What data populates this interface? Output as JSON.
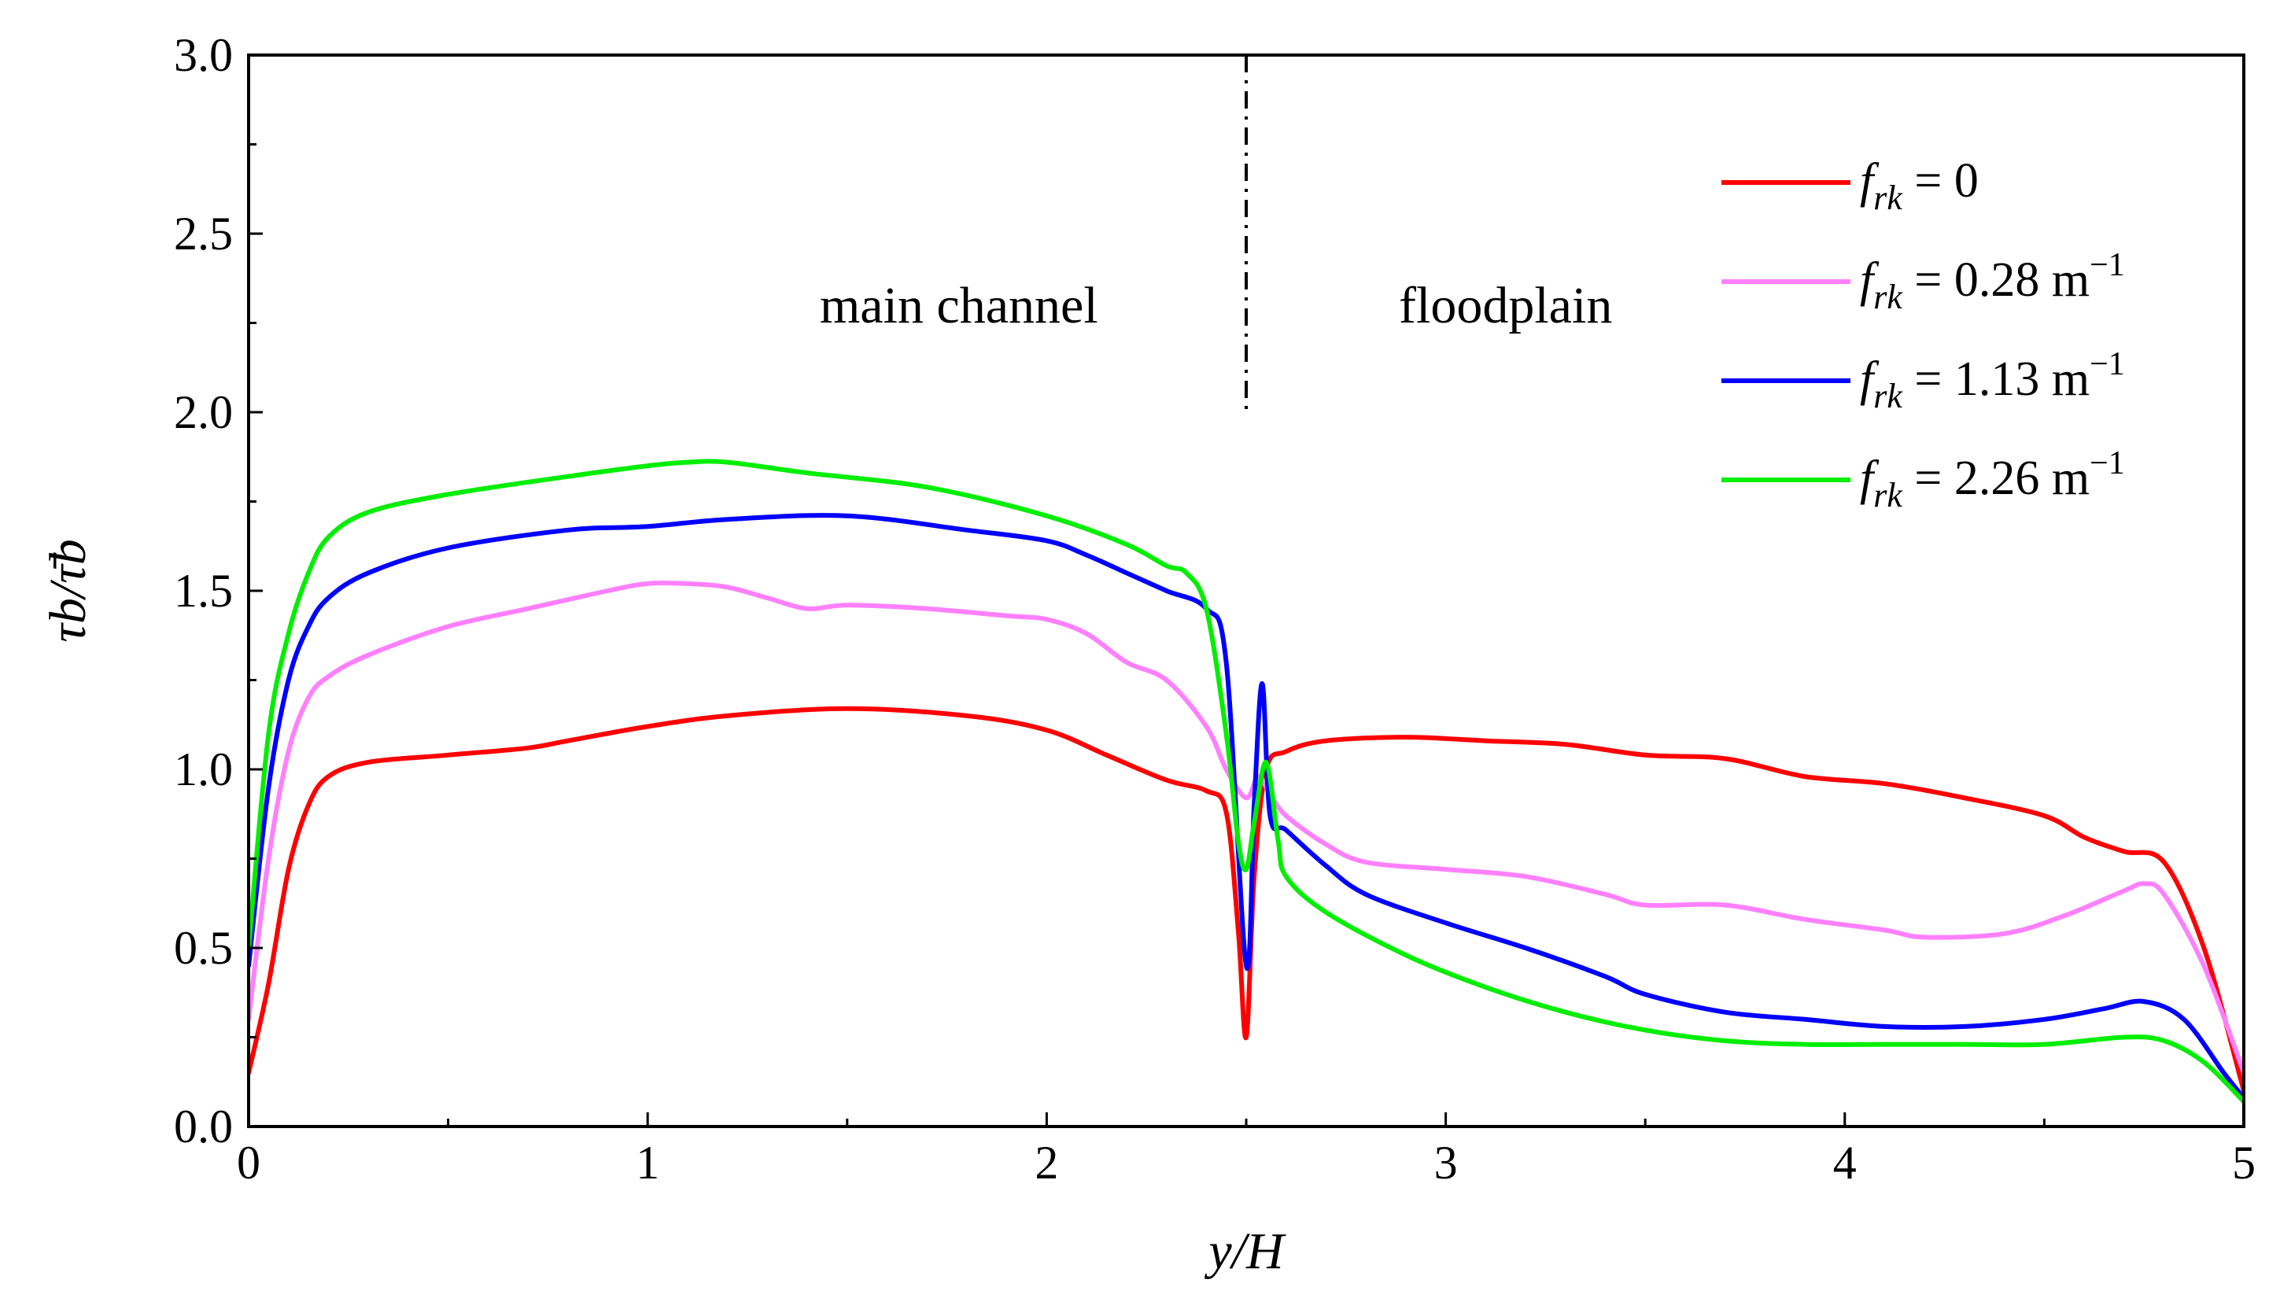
{
  "chart_data": {
    "type": "line",
    "title": "",
    "xlabel": "y/H",
    "ylabel": "τb/τ̄b",
    "xlim": [
      0,
      5
    ],
    "ylim": [
      0,
      3.0
    ],
    "xticks": [
      0,
      1,
      2,
      3,
      4,
      5
    ],
    "xtick_labels": [
      "0",
      "1",
      "2",
      "3",
      "4",
      "5"
    ],
    "yticks": [
      0,
      0.5,
      1.0,
      1.5,
      2.0,
      2.5,
      3.0
    ],
    "ytick_labels": [
      "0.0",
      "0.5",
      "1.0",
      "1.5",
      "2.0",
      "2.5",
      "3.0"
    ],
    "legend_position": "top-right",
    "annotations": [
      {
        "text": "main channel",
        "x": 1.78,
        "y": 2.3
      },
      {
        "text": "floodplain",
        "x": 3.15,
        "y": 2.3
      }
    ],
    "divider": {
      "x": 2.5,
      "y_range": [
        2.0,
        3.0
      ],
      "style": "dash-dot"
    },
    "series": [
      {
        "name": "f_rk = 0",
        "label_lhs": "f",
        "label_sub": "rk",
        "label_rhs": " = 0",
        "label_sup": "",
        "color": "#ff0000",
        "x": [
          0,
          0.05,
          0.1,
          0.15,
          0.2,
          0.3,
          0.5,
          0.7,
          0.8,
          1.0,
          1.2,
          1.5,
          1.8,
          2.0,
          2.15,
          2.3,
          2.4,
          2.45,
          2.48,
          2.5,
          2.52,
          2.55,
          2.6,
          2.7,
          2.9,
          3.1,
          3.3,
          3.5,
          3.7,
          3.9,
          4.1,
          4.3,
          4.5,
          4.6,
          4.7,
          4.8,
          4.9,
          5.0
        ],
        "y": [
          0.15,
          0.4,
          0.72,
          0.9,
          0.98,
          1.02,
          1.04,
          1.06,
          1.08,
          1.12,
          1.15,
          1.17,
          1.15,
          1.11,
          1.04,
          0.97,
          0.94,
          0.88,
          0.55,
          0.25,
          0.7,
          1.0,
          1.05,
          1.08,
          1.09,
          1.08,
          1.07,
          1.04,
          1.03,
          0.98,
          0.96,
          0.92,
          0.87,
          0.81,
          0.77,
          0.74,
          0.5,
          0.1
        ]
      },
      {
        "name": "f_rk = 0.28 m^-1",
        "label_lhs": "f",
        "label_sub": "rk",
        "label_rhs": " = 0.28 m",
        "label_sup": "−1",
        "color": "#ff80ff",
        "x": [
          0,
          0.05,
          0.1,
          0.15,
          0.2,
          0.3,
          0.5,
          0.7,
          0.9,
          1.0,
          1.1,
          1.2,
          1.3,
          1.4,
          1.5,
          1.7,
          1.9,
          2.0,
          2.1,
          2.2,
          2.3,
          2.4,
          2.45,
          2.5,
          2.53,
          2.56,
          2.6,
          2.7,
          2.8,
          3.0,
          3.2,
          3.4,
          3.5,
          3.7,
          3.9,
          4.1,
          4.2,
          4.4,
          4.55,
          4.7,
          4.75,
          4.8,
          4.9,
          5.0
        ],
        "y": [
          0.3,
          0.75,
          1.05,
          1.2,
          1.26,
          1.32,
          1.4,
          1.45,
          1.5,
          1.52,
          1.52,
          1.51,
          1.48,
          1.45,
          1.46,
          1.45,
          1.43,
          1.42,
          1.38,
          1.3,
          1.25,
          1.12,
          1.0,
          0.92,
          0.98,
          0.93,
          0.87,
          0.79,
          0.74,
          0.72,
          0.7,
          0.65,
          0.62,
          0.62,
          0.58,
          0.55,
          0.53,
          0.54,
          0.59,
          0.66,
          0.68,
          0.65,
          0.45,
          0.15
        ]
      },
      {
        "name": "f_rk = 1.13 m^-1",
        "label_lhs": "f",
        "label_sub": "rk",
        "label_rhs": " = 1.13 m",
        "label_sup": "−1",
        "color": "#0000ff",
        "x": [
          0,
          0.05,
          0.1,
          0.15,
          0.2,
          0.3,
          0.5,
          0.8,
          1.0,
          1.2,
          1.5,
          1.8,
          2.0,
          2.1,
          2.2,
          2.3,
          2.4,
          2.45,
          2.5,
          2.52,
          2.54,
          2.56,
          2.6,
          2.7,
          2.8,
          3.0,
          3.2,
          3.4,
          3.5,
          3.7,
          3.9,
          4.1,
          4.3,
          4.5,
          4.65,
          4.75,
          4.85,
          4.95,
          5.0
        ],
        "y": [
          0.45,
          0.95,
          1.25,
          1.4,
          1.48,
          1.55,
          1.62,
          1.67,
          1.68,
          1.7,
          1.71,
          1.67,
          1.64,
          1.6,
          1.55,
          1.5,
          1.45,
          1.3,
          0.45,
          0.9,
          1.24,
          0.87,
          0.83,
          0.73,
          0.65,
          0.57,
          0.5,
          0.42,
          0.37,
          0.32,
          0.3,
          0.28,
          0.28,
          0.3,
          0.33,
          0.35,
          0.3,
          0.15,
          0.08
        ]
      },
      {
        "name": "f_rk = 2.26 m^-1",
        "label_lhs": "f",
        "label_sub": "rk",
        "label_rhs": " = 2.26 m",
        "label_sup": "−1",
        "color": "#00ee00",
        "x": [
          0,
          0.05,
          0.1,
          0.15,
          0.2,
          0.3,
          0.5,
          0.8,
          1.0,
          1.1,
          1.2,
          1.4,
          1.7,
          2.0,
          2.2,
          2.3,
          2.35,
          2.4,
          2.45,
          2.48,
          2.5,
          2.52,
          2.55,
          2.58,
          2.6,
          2.7,
          2.9,
          3.1,
          3.3,
          3.5,
          3.7,
          3.9,
          4.1,
          4.3,
          4.5,
          4.7,
          4.8,
          4.9,
          5.0
        ],
        "y": [
          0.5,
          1.1,
          1.38,
          1.55,
          1.65,
          1.72,
          1.77,
          1.82,
          1.85,
          1.86,
          1.86,
          1.83,
          1.79,
          1.71,
          1.63,
          1.57,
          1.55,
          1.45,
          1.1,
          0.8,
          0.72,
          0.85,
          1.02,
          0.8,
          0.7,
          0.6,
          0.48,
          0.39,
          0.32,
          0.27,
          0.24,
          0.23,
          0.23,
          0.23,
          0.23,
          0.25,
          0.24,
          0.18,
          0.07
        ]
      }
    ]
  }
}
